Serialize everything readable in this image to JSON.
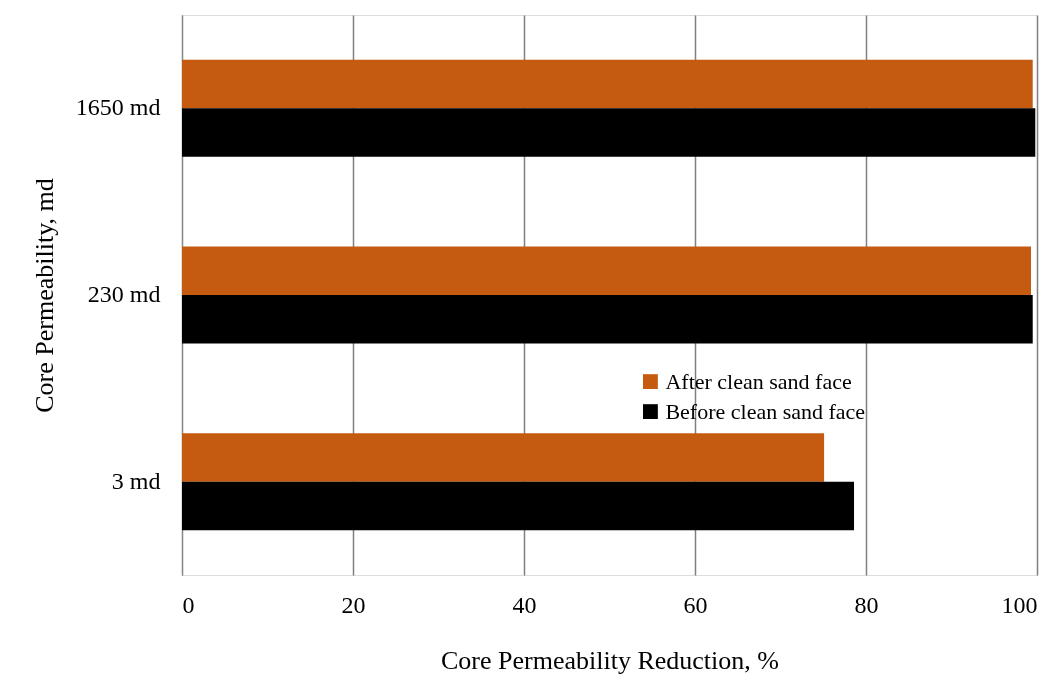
{
  "chart_data": {
    "type": "bar",
    "orientation": "horizontal",
    "xlabel": "Core Permeability Reduction, %",
    "ylabel": "Core Permeability, md",
    "categories": [
      "1650 md",
      "230 md",
      "3 md"
    ],
    "series": [
      {
        "name": "After clean sand face",
        "color": "#c55a11",
        "values": [
          99.5,
          99.3,
          75.1
        ]
      },
      {
        "name": "Before clean sand face",
        "color": "#000000",
        "values": [
          99.8,
          99.5,
          78.6
        ]
      }
    ],
    "xlim": [
      0,
      100
    ],
    "xticks": [
      0,
      20,
      40,
      60,
      80,
      100
    ],
    "grid": "x",
    "legend": "right"
  }
}
